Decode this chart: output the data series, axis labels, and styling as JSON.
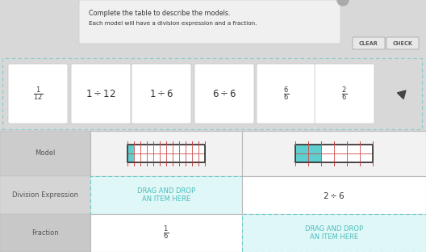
{
  "bg_color": "#d8d8d8",
  "white": "#ffffff",
  "light_blue_drag": "#e0f7f7",
  "teal_text": "#4abcbc",
  "dark_text": "#555555",
  "instruction_bg": "#f0f0f0",
  "drag_border_color": "#66cccc",
  "title_text": "Complete the table to describe the models.",
  "subtitle_text": "Each model will have a division expression and a fraction.",
  "row_labels": [
    "Model",
    "Division Expression",
    "Fraction"
  ],
  "clear_btn": "CLEAR",
  "check_btn": "CHECK",
  "card_texts": [
    "1/12",
    "1 div 12",
    "1 div 6",
    "6 div 6",
    "6/6",
    "2/6"
  ],
  "col1_fraction": "1/6",
  "col2_division": "2 div 6",
  "drag_drop_line1": "DRAG AND DROP",
  "drag_drop_line2": "AN ITEM HERE",
  "model1_cols": 12,
  "model1_rows": 2,
  "model1_highlight": 1,
  "model2_cols": 6,
  "model2_rows": 2,
  "model2_highlight": 2,
  "highlight_color": "#5ecece",
  "grid_color_red": "#cc4444",
  "label_col_bg": "#c8c8c8",
  "data_col_bg": "#ebebeb",
  "card_border": "#cccccc",
  "btn_bg": "#e8e8e8",
  "btn_border": "#aaaaaa"
}
